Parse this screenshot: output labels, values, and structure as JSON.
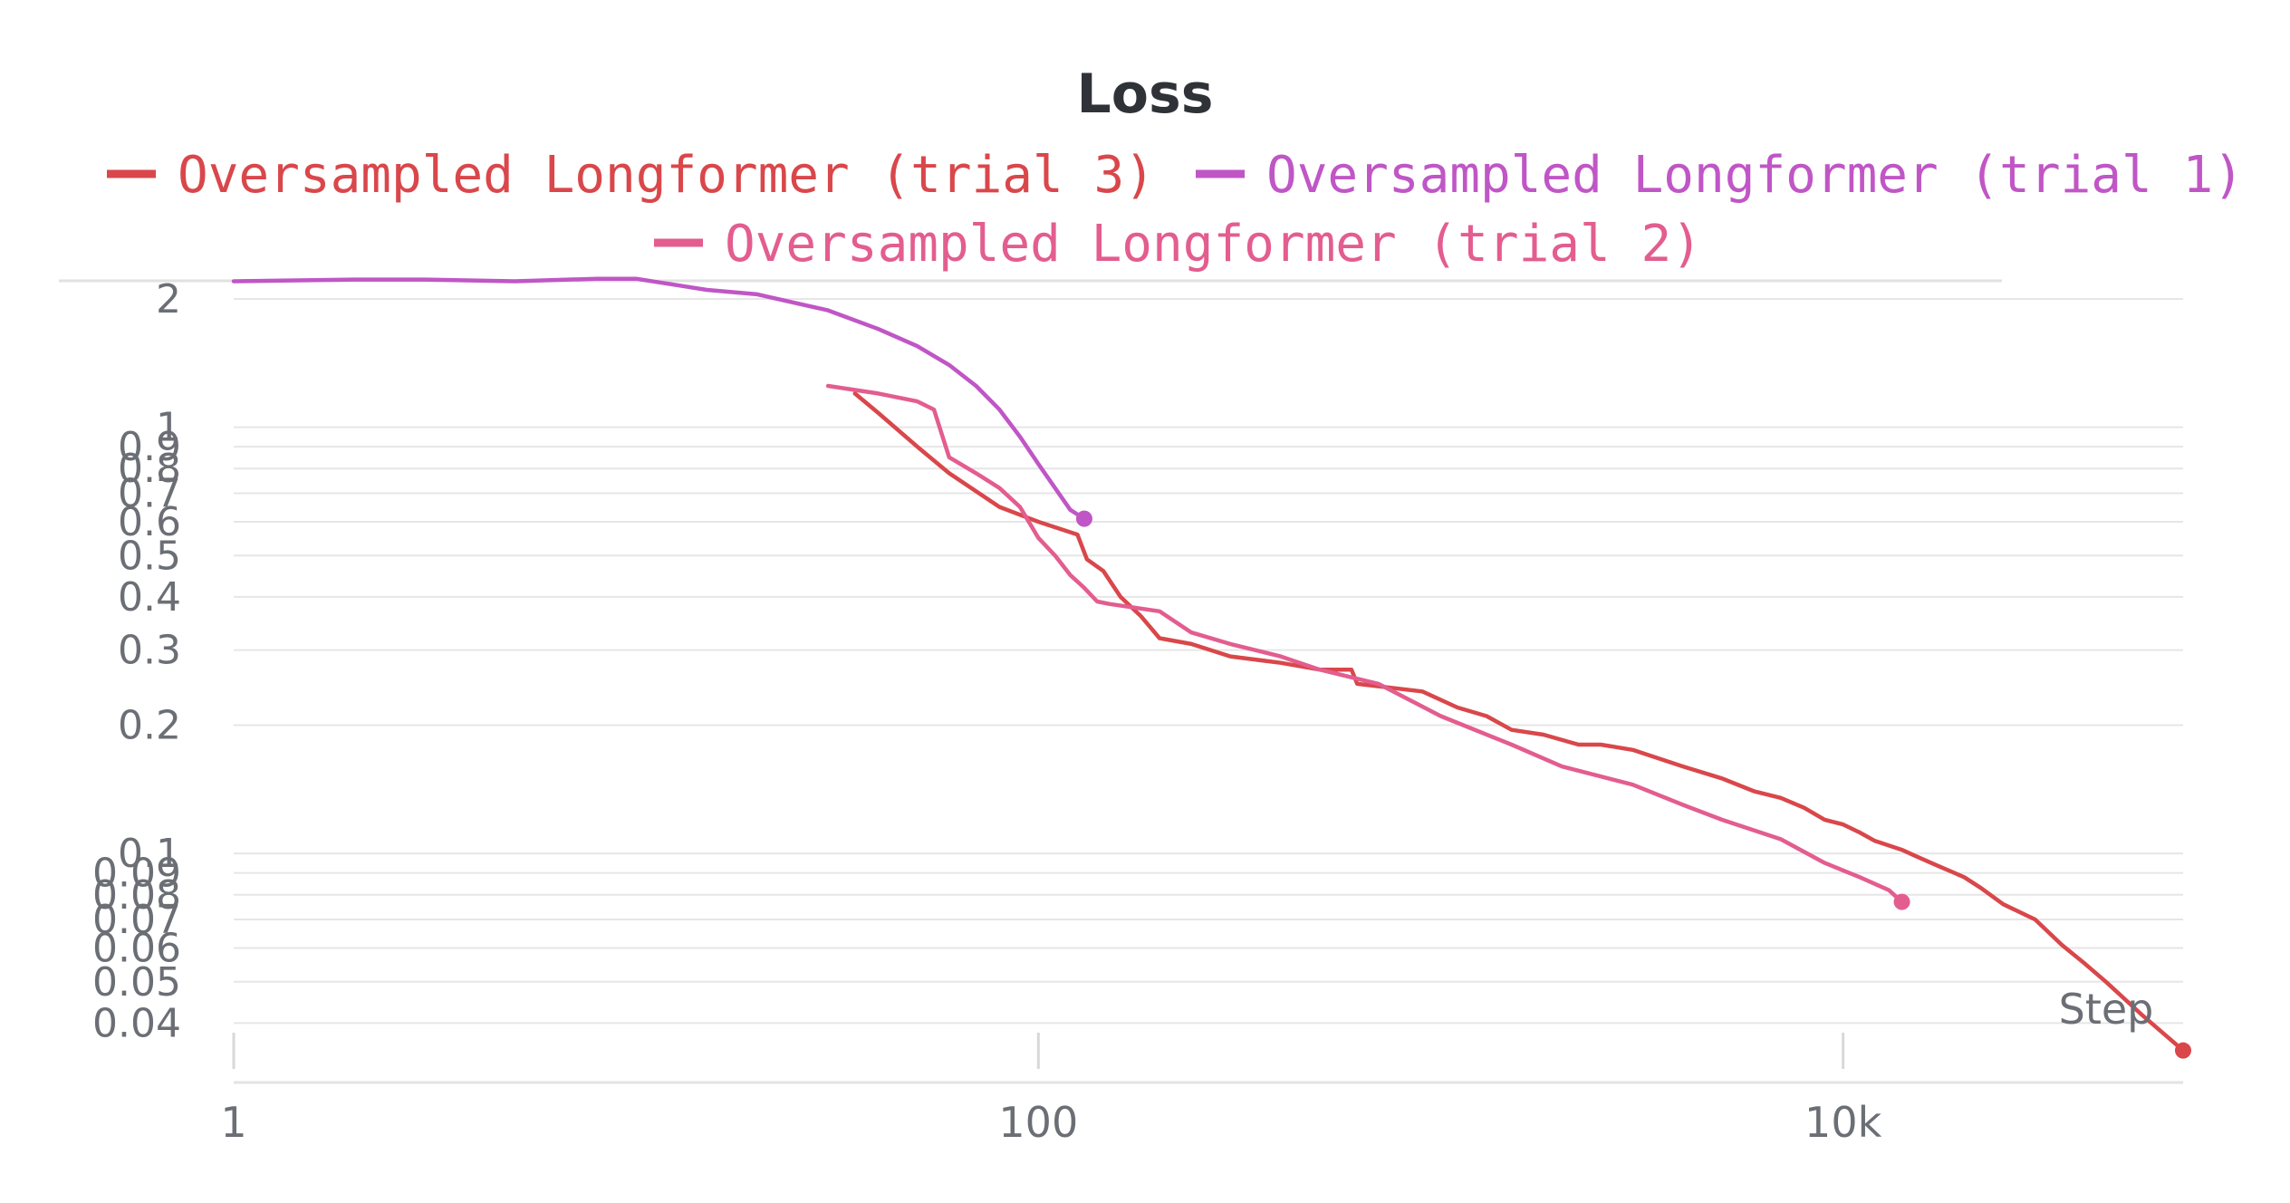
{
  "chart_data": {
    "type": "line",
    "title": "Loss",
    "xlabel": "Step",
    "ylabel": "",
    "x_scale": "log",
    "y_scale": "log",
    "xlim": [
      1,
      70000
    ],
    "ylim": [
      0.032,
      2.1
    ],
    "x_ticks": [
      1,
      100,
      10000
    ],
    "x_tick_labels": [
      "1",
      "100",
      "10k"
    ],
    "y_ticks": [
      2,
      1,
      0.9,
      0.8,
      0.7,
      0.6,
      0.5,
      0.4,
      0.3,
      0.2,
      0.1,
      0.09,
      0.08,
      0.07,
      0.06,
      0.05,
      0.04
    ],
    "y_tick_labels": [
      "2",
      "1",
      "0.9",
      "0.8",
      "0.7",
      "0.6",
      "0.5",
      "0.4",
      "0.3",
      "0.2",
      "0.1",
      "0.09",
      "0.08",
      "0.07",
      "0.06",
      "0.05",
      "0.04"
    ],
    "grid": true,
    "legend_position": "top",
    "series": [
      {
        "name": "Oversampled Longformer (trial 3)",
        "color": "#d9474b",
        "x": [
          35,
          40,
          50,
          60,
          80,
          100,
          125,
          132,
          145,
          160,
          180,
          200,
          240,
          300,
          400,
          500,
          600,
          620,
          900,
          1100,
          1300,
          1500,
          1800,
          2200,
          2500,
          3000,
          4000,
          5000,
          6000,
          7000,
          8000,
          9000,
          10000,
          11000,
          12000,
          14000,
          15000,
          17000,
          20000,
          22000,
          25000,
          30000,
          35000,
          40000,
          45000,
          55000,
          70000
        ],
        "y": [
          1.2,
          1.08,
          0.9,
          0.78,
          0.65,
          0.6,
          0.56,
          0.49,
          0.46,
          0.4,
          0.36,
          0.32,
          0.31,
          0.29,
          0.28,
          0.27,
          0.27,
          0.25,
          0.24,
          0.22,
          0.21,
          0.195,
          0.19,
          0.18,
          0.18,
          0.175,
          0.16,
          0.15,
          0.14,
          0.135,
          0.128,
          0.12,
          0.117,
          0.112,
          0.107,
          0.102,
          0.099,
          0.094,
          0.088,
          0.083,
          0.076,
          0.07,
          0.061,
          0.055,
          0.05,
          0.042,
          0.0345
        ]
      },
      {
        "name": "Oversampled Longformer (trial 1)",
        "color": "#c056c6",
        "x": [
          1,
          2,
          3,
          5,
          8,
          10,
          15,
          20,
          30,
          40,
          50,
          60,
          70,
          80,
          90,
          100,
          110,
          120,
          130
        ],
        "y": [
          2.2,
          2.22,
          2.22,
          2.2,
          2.23,
          2.23,
          2.1,
          2.05,
          1.88,
          1.7,
          1.55,
          1.4,
          1.25,
          1.1,
          0.95,
          0.82,
          0.72,
          0.64,
          0.61
        ]
      },
      {
        "name": "Oversampled Longformer (trial 2)",
        "color": "#e35d8f",
        "x": [
          30,
          40,
          50,
          55,
          60,
          70,
          80,
          90,
          100,
          110,
          120,
          130,
          140,
          150,
          200,
          240,
          300,
          400,
          500,
          700,
          1000,
          1500,
          2000,
          3000,
          4000,
          5000,
          7000,
          9000,
          11000,
          13000,
          14000
        ],
        "y": [
          1.25,
          1.2,
          1.15,
          1.1,
          0.85,
          0.78,
          0.72,
          0.65,
          0.55,
          0.5,
          0.45,
          0.42,
          0.39,
          0.385,
          0.37,
          0.33,
          0.31,
          0.29,
          0.27,
          0.25,
          0.21,
          0.18,
          0.16,
          0.145,
          0.13,
          0.12,
          0.108,
          0.095,
          0.088,
          0.082,
          0.077
        ]
      }
    ]
  }
}
